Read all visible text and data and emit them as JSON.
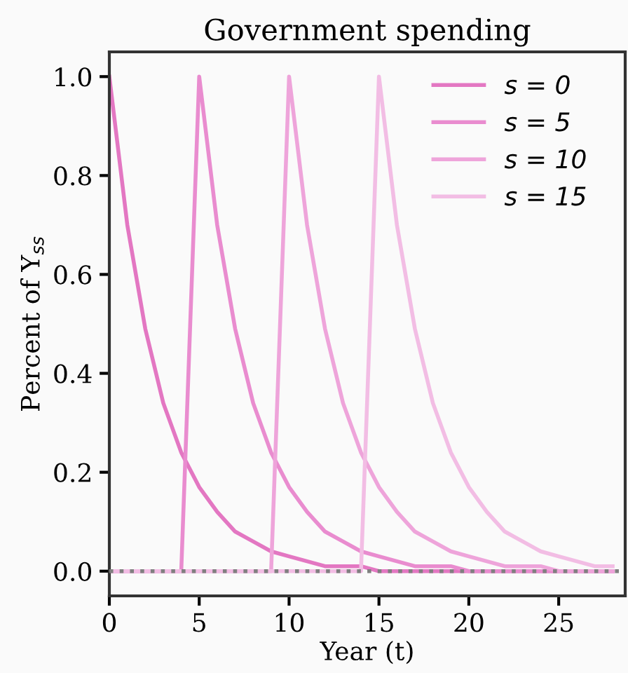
{
  "chart_data": {
    "type": "line",
    "title": "Government spending",
    "xlabel": "Year (t)",
    "ylabel": "Percent of Y$_{ss}$",
    "x": [
      0,
      1,
      2,
      3,
      4,
      5,
      6,
      7,
      8,
      9,
      10,
      11,
      12,
      13,
      14,
      15,
      16,
      17,
      18,
      19,
      20,
      21,
      22,
      23,
      24,
      25,
      26,
      27,
      28
    ],
    "series": [
      {
        "name": "s = 0",
        "color": "#e377c2",
        "values": [
          1,
          0.7,
          0.49,
          0.34,
          0.24,
          0.17,
          0.12,
          0.08,
          0.06,
          0.04,
          0.03,
          0.02,
          0.01,
          0.01,
          0.01,
          0,
          0,
          0,
          0,
          0,
          0,
          0,
          0,
          0,
          0,
          0,
          0,
          0,
          0
        ]
      },
      {
        "name": "s = 5",
        "color": "#e98ccf",
        "values": [
          0,
          0,
          0,
          0,
          0,
          1,
          0.7,
          0.49,
          0.34,
          0.24,
          0.17,
          0.12,
          0.08,
          0.06,
          0.04,
          0.03,
          0.02,
          0.01,
          0.01,
          0.01,
          0,
          0,
          0,
          0,
          0,
          0,
          0,
          0,
          0
        ]
      },
      {
        "name": "s = 10",
        "color": "#eea4da",
        "values": [
          0,
          0,
          0,
          0,
          0,
          0,
          0,
          0,
          0,
          0,
          1,
          0.7,
          0.49,
          0.34,
          0.24,
          0.17,
          0.12,
          0.08,
          0.06,
          0.04,
          0.03,
          0.02,
          0.01,
          0.01,
          0.01,
          0,
          0,
          0,
          0
        ]
      },
      {
        "name": "s = 15",
        "color": "#f2bde4",
        "values": [
          0,
          0,
          0,
          0,
          0,
          0,
          0,
          0,
          0,
          0,
          0,
          0,
          0,
          0,
          0,
          1,
          0.7,
          0.49,
          0.34,
          0.24,
          0.17,
          0.12,
          0.08,
          0.06,
          0.04,
          0.03,
          0.02,
          0.01,
          0.01
        ]
      }
    ],
    "xlim": [
      0,
      28.7
    ],
    "xticks": [
      0,
      5,
      10,
      15,
      20,
      25
    ],
    "ylim": [
      -0.05,
      1.05
    ],
    "yticks": [
      {
        "value": 0,
        "label": "0.0"
      },
      {
        "value": 0.2,
        "label": "0.2"
      },
      {
        "value": 0.4,
        "label": "0.4"
      },
      {
        "value": 0.6,
        "label": "0.6"
      },
      {
        "value": 0.8,
        "label": "0.8"
      },
      {
        "value": 1,
        "label": "1.0"
      }
    ],
    "ref_lines": [
      {
        "axis": "y",
        "value": 0,
        "color": "#808080",
        "line_style": "dotted"
      }
    ],
    "legend": "top right",
    "grid": false,
    "marker": "none",
    "line_style": "solid"
  }
}
